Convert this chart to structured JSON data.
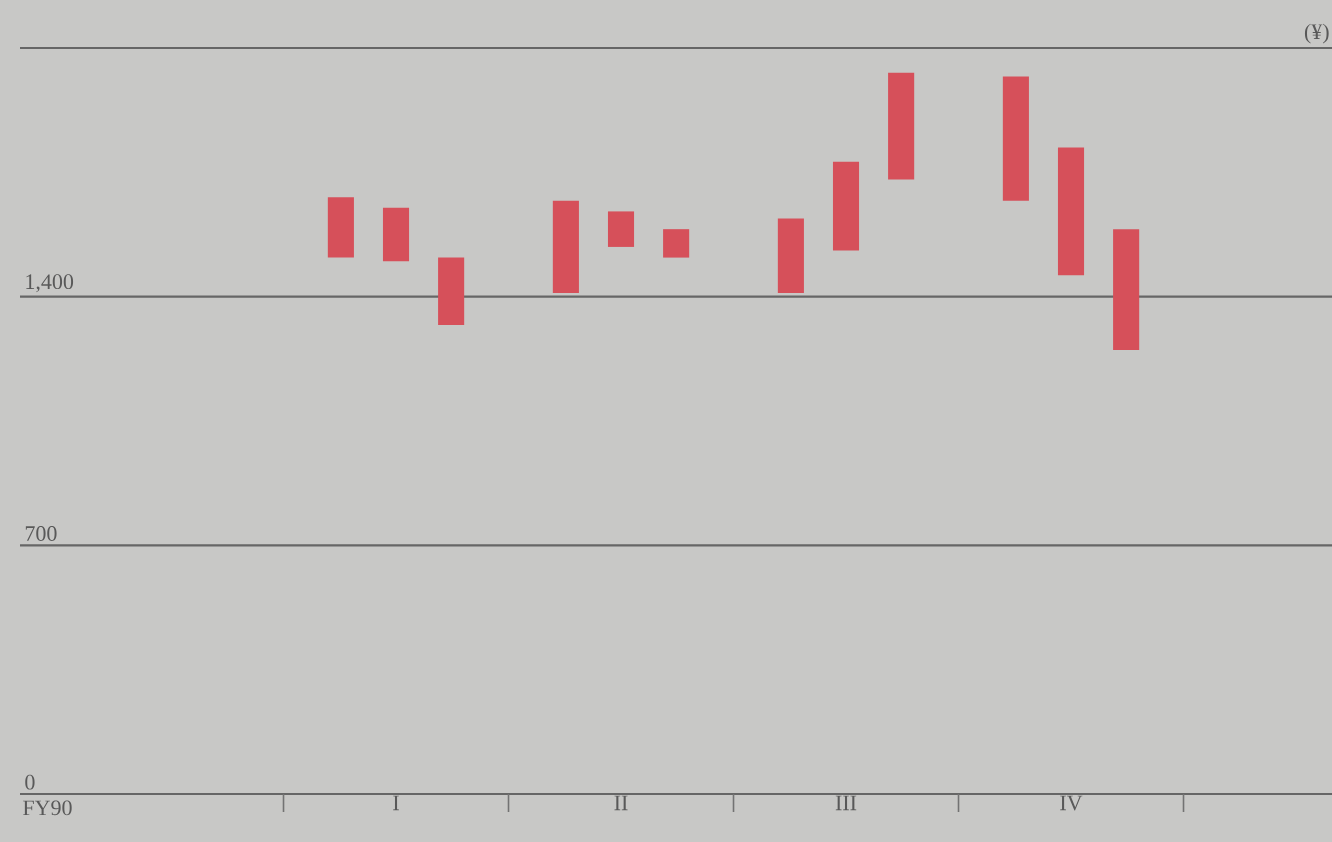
{
  "chart_data": {
    "type": "bar",
    "annotations": [
      "FY90",
      "(¥)"
    ],
    "categories": [
      "I",
      "II",
      "III",
      "IV"
    ],
    "series": [
      {
        "color": "#d6505a",
        "base": [
          1510,
          1410,
          1410,
          1670
        ],
        "values": [
          170,
          260,
          210,
          350
        ]
      },
      {
        "color": "#d6505a",
        "base": [
          1500,
          1540,
          1530,
          1460
        ],
        "values": [
          150,
          100,
          250,
          360
        ]
      },
      {
        "color": "#d6505a",
        "base": [
          1320,
          1510,
          1730,
          1250
        ],
        "values": [
          190,
          80,
          300,
          340
        ]
      }
    ],
    "ylim": [
      0,
      2100
    ],
    "yticks": [
      0,
      700,
      {
        "value": 1400,
        "label": "1,400"
      },
      {
        "value": 2100,
        "label": null
      }
    ],
    "grid": "y"
  }
}
